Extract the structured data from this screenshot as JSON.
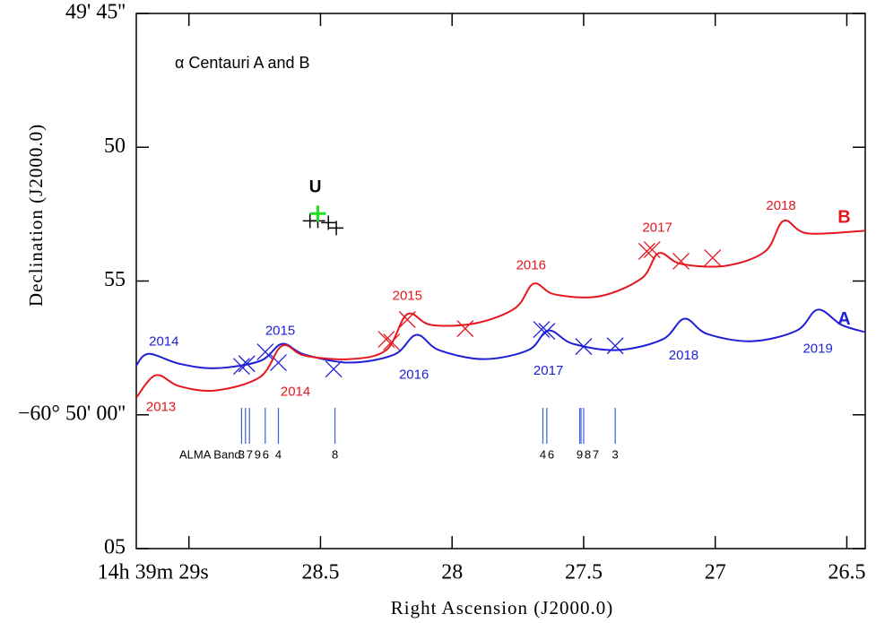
{
  "chart_data": {
    "type": "line",
    "title": "α Centauri A and B",
    "xlabel": "Right Ascension (J2000.0)",
    "ylabel": "Declination (J2000.0)",
    "xlim": [
      29.2,
      26.43
    ],
    "ylim": [
      65,
      45
    ],
    "xticks": [
      {
        "value": 29,
        "label": "14h 39m 29s"
      },
      28.5,
      28,
      27.5,
      27,
      26.5
    ],
    "yticks": [
      {
        "value": 45,
        "label": "49' 45''"
      },
      50,
      55,
      {
        "value": 60,
        "label": "−60° 50' 00''"
      },
      {
        "value": 65,
        "label": "05"
      }
    ],
    "series": [
      {
        "name": "A",
        "color": "#1f1fd6",
        "name_x": 26.51,
        "name_y": 56.44,
        "x": [
          29.2,
          29.153,
          29.037,
          28.9,
          28.73,
          28.646,
          28.56,
          28.39,
          28.22,
          28.135,
          28.05,
          27.88,
          27.71,
          27.634,
          27.54,
          27.37,
          27.2,
          27.117,
          27.03,
          26.86,
          26.69,
          26.61,
          26.52,
          26.43
        ],
        "y": [
          58.15,
          57.72,
          58.09,
          58.26,
          57.99,
          57.35,
          57.75,
          58.05,
          57.75,
          57.01,
          57.58,
          57.92,
          57.58,
          56.85,
          57.35,
          57.58,
          57.18,
          56.41,
          56.98,
          57.25,
          56.85,
          56.07,
          56.64,
          56.91
        ],
        "obs_x": [
          28.8,
          28.78,
          28.71,
          28.66,
          28.45,
          27.66,
          27.64,
          27.5,
          27.38
        ],
        "obs_y": [
          58.19,
          58.09,
          57.65,
          58.05,
          58.29,
          56.81,
          56.88,
          57.45,
          57.42
        ],
        "year_labels": [
          {
            "text": "2014",
            "x": 29.095,
            "y": 57.28
          },
          {
            "text": "2015",
            "x": 28.653,
            "y": 56.88
          },
          {
            "text": "2016",
            "x": 28.145,
            "y": 58.52
          },
          {
            "text": "2017",
            "x": 27.634,
            "y": 58.36
          },
          {
            "text": "2018",
            "x": 27.12,
            "y": 57.79
          },
          {
            "text": "2019",
            "x": 26.61,
            "y": 57.55
          }
        ]
      },
      {
        "name": "B",
        "color": "#e5161e",
        "name_x": 26.51,
        "name_y": 52.65,
        "x": [
          29.2,
          29.126,
          29.037,
          28.9,
          28.73,
          28.646,
          28.56,
          28.39,
          28.25,
          28.17,
          28.08,
          27.91,
          27.76,
          27.69,
          27.61,
          27.44,
          27.28,
          27.215,
          27.13,
          26.96,
          26.81,
          26.74,
          26.65,
          26.43
        ],
        "y": [
          59.36,
          58.52,
          58.93,
          59.09,
          58.59,
          57.42,
          57.79,
          57.92,
          57.58,
          56.24,
          56.64,
          56.58,
          56.01,
          55.1,
          55.5,
          55.57,
          54.9,
          53.96,
          54.36,
          54.43,
          53.89,
          52.75,
          53.22,
          53.12
        ],
        "obs_x": [
          28.25,
          28.23,
          28.17,
          27.95,
          27.26,
          27.24,
          27.13,
          27.01
        ],
        "obs_y": [
          57.18,
          57.28,
          56.44,
          56.78,
          53.89,
          53.83,
          54.26,
          54.13
        ],
        "year_labels": [
          {
            "text": "2013",
            "x": 29.106,
            "y": 59.73
          },
          {
            "text": "2014",
            "x": 28.595,
            "y": 59.16
          },
          {
            "text": "2015",
            "x": 28.17,
            "y": 55.57
          },
          {
            "text": "2016",
            "x": 27.7,
            "y": 54.43
          },
          {
            "text": "2017",
            "x": 27.22,
            "y": 53.02
          },
          {
            "text": "2018",
            "x": 26.75,
            "y": 52.21
          }
        ]
      }
    ],
    "U": {
      "label": "U",
      "label_x": 28.52,
      "label_y": 51.51,
      "color": "#000000",
      "x": [
        28.54,
        28.51,
        28.47,
        28.44
      ],
      "y": [
        52.75,
        52.75,
        52.82,
        53.02
      ],
      "best": {
        "color": "#22dd22",
        "x": 28.51,
        "y": 52.48
      }
    },
    "alma": {
      "label": "ALMA Band",
      "color": "#3a5fe0",
      "bands": [
        {
          "x": 28.8,
          "band": "3"
        },
        {
          "x": 28.785,
          "band": "7"
        },
        {
          "x": 28.77,
          "band": "9"
        },
        {
          "x": 28.71,
          "band": "6"
        },
        {
          "x": 28.66,
          "band": "4"
        },
        {
          "x": 28.445,
          "band": "8"
        },
        {
          "x": 27.655,
          "band": "4"
        },
        {
          "x": 27.64,
          "band": "6"
        },
        {
          "x": 27.515,
          "band": "9"
        },
        {
          "x": 27.51,
          "band": "8"
        },
        {
          "x": 27.5,
          "band": "7"
        },
        {
          "x": 27.38,
          "band": "3"
        }
      ]
    }
  }
}
